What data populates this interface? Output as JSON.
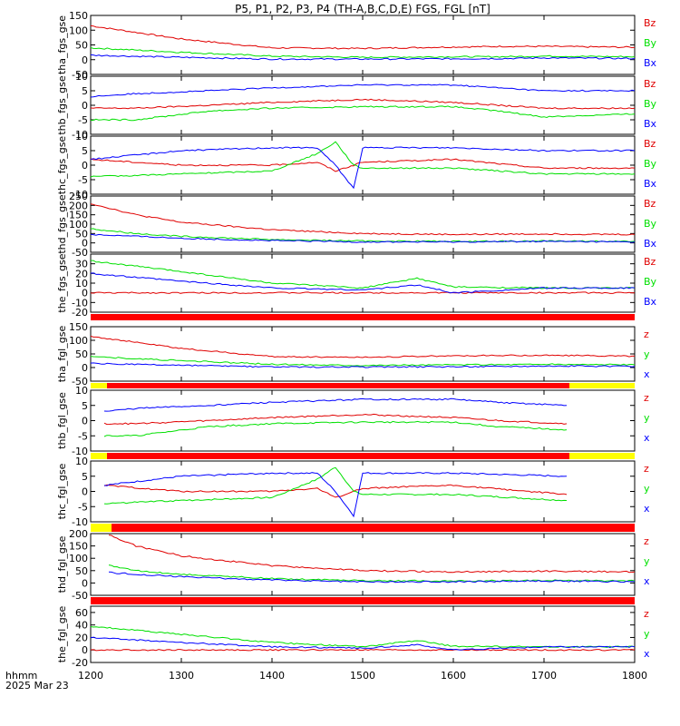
{
  "title": "P5, P1, P2, P3, P4 (TH-A,B,C,D,E) FGS, FGL [nT]",
  "colors": {
    "x": "#0000ff",
    "y": "#00e000",
    "z": "#e00000",
    "bar_red": "#ff0000",
    "bar_yellow": "#ffff00",
    "axis": "#000000"
  },
  "x_axis": {
    "range": [
      1200,
      1800
    ],
    "ticks": [
      1200,
      1300,
      1400,
      1500,
      1600,
      1700,
      1800
    ],
    "unit_label": "hhmm",
    "date_label": "2025 Mar 23"
  },
  "chart_data": [
    {
      "type": "line",
      "panel": "tha_fgs_gse",
      "ylabel": "tha_fgs_gse",
      "ylim": [
        -50,
        150
      ],
      "yticks": [
        150,
        100,
        50,
        0,
        -50
      ],
      "series": [
        {
          "name": "Bz",
          "color": "#e00000",
          "x": [
            1200,
            1300,
            1400,
            1500,
            1600,
            1660,
            1700,
            1800
          ],
          "y": [
            115,
            70,
            40,
            38,
            43,
            45,
            45,
            42
          ]
        },
        {
          "name": "By",
          "color": "#00e000",
          "x": [
            1200,
            1300,
            1400,
            1500,
            1600,
            1660,
            1700,
            1800
          ],
          "y": [
            40,
            25,
            12,
            8,
            10,
            10,
            12,
            10
          ]
        },
        {
          "name": "Bx",
          "color": "#0000ff",
          "x": [
            1200,
            1300,
            1400,
            1500,
            1600,
            1660,
            1700,
            1800
          ],
          "y": [
            15,
            8,
            2,
            2,
            3,
            4,
            6,
            4
          ]
        }
      ]
    },
    {
      "type": "line",
      "panel": "thb_fgs_gse",
      "ylabel": "thb_fgs_gse",
      "ylim": [
        -10,
        10
      ],
      "yticks": [
        10,
        5,
        0,
        -5,
        -10
      ],
      "series": [
        {
          "name": "Bz",
          "color": "#e00000",
          "x": [
            1200,
            1250,
            1330,
            1400,
            1500,
            1600,
            1650,
            1700,
            1800
          ],
          "y": [
            -1,
            -1,
            0,
            1,
            2,
            1,
            0,
            -1,
            -1
          ]
        },
        {
          "name": "By",
          "color": "#00e000",
          "x": [
            1200,
            1250,
            1330,
            1400,
            1500,
            1600,
            1650,
            1700,
            1800
          ],
          "y": [
            -5,
            -5,
            -2,
            -1,
            -0.5,
            -0.5,
            -2,
            -4,
            -3
          ]
        },
        {
          "name": "Bx",
          "color": "#0000ff",
          "x": [
            1200,
            1250,
            1330,
            1400,
            1500,
            1600,
            1650,
            1700,
            1800
          ],
          "y": [
            3,
            4,
            5,
            6,
            7,
            7,
            6,
            5,
            5
          ]
        }
      ]
    },
    {
      "type": "line",
      "panel": "thc_fgs_gse",
      "ylabel": "thc_fgs_gse",
      "ylim": [
        -10,
        10
      ],
      "yticks": [
        10,
        5,
        0,
        -5,
        -10
      ],
      "series": [
        {
          "name": "Bz",
          "color": "#e00000",
          "x": [
            1200,
            1300,
            1400,
            1450,
            1470,
            1490,
            1500,
            1600,
            1700,
            1800
          ],
          "y": [
            2,
            0,
            0,
            1,
            -2,
            0,
            1,
            2,
            -1,
            -1
          ]
        },
        {
          "name": "By",
          "color": "#00e000",
          "x": [
            1200,
            1300,
            1400,
            1450,
            1470,
            1490,
            1500,
            1600,
            1700,
            1800
          ],
          "y": [
            -4,
            -3,
            -2,
            4,
            8,
            0,
            -1,
            -1,
            -3,
            -3
          ]
        },
        {
          "name": "Bx",
          "color": "#0000ff",
          "x": [
            1200,
            1300,
            1400,
            1450,
            1470,
            1490,
            1500,
            1600,
            1700,
            1800
          ],
          "y": [
            2,
            5,
            6,
            6,
            0,
            -8,
            6,
            6,
            5,
            5
          ]
        }
      ]
    },
    {
      "type": "line",
      "panel": "thd_fgs_gse",
      "ylabel": "thd_fgs_gse",
      "ylim": [
        -50,
        250
      ],
      "yticks": [
        250,
        200,
        150,
        100,
        50,
        0,
        -50
      ],
      "series": [
        {
          "name": "Bz",
          "color": "#e00000",
          "x": [
            1200,
            1250,
            1300,
            1400,
            1500,
            1600,
            1700,
            1800
          ],
          "y": [
            210,
            150,
            110,
            70,
            50,
            45,
            48,
            45
          ]
        },
        {
          "name": "By",
          "color": "#00e000",
          "x": [
            1200,
            1250,
            1300,
            1400,
            1500,
            1600,
            1700,
            1800
          ],
          "y": [
            75,
            50,
            35,
            18,
            10,
            8,
            10,
            8
          ]
        },
        {
          "name": "Bx",
          "color": "#0000ff",
          "x": [
            1200,
            1250,
            1300,
            1400,
            1500,
            1600,
            1700,
            1800
          ],
          "y": [
            45,
            35,
            25,
            12,
            5,
            5,
            8,
            5
          ]
        }
      ]
    },
    {
      "type": "line",
      "panel": "the_fgs_gse",
      "ylabel": "the_fgs_gse",
      "ylim": [
        -20,
        40
      ],
      "yticks": [
        30,
        20,
        10,
        0,
        -10,
        -20
      ],
      "series": [
        {
          "name": "Bz",
          "color": "#e00000",
          "x": [
            1200,
            1800
          ],
          "y": [
            0,
            0
          ]
        },
        {
          "name": "By",
          "color": "#00e000",
          "x": [
            1200,
            1300,
            1400,
            1500,
            1560,
            1600,
            1700,
            1800
          ],
          "y": [
            33,
            22,
            10,
            5,
            15,
            6,
            5,
            5
          ]
        },
        {
          "name": "Bx",
          "color": "#0000ff",
          "x": [
            1200,
            1300,
            1400,
            1500,
            1560,
            1600,
            1700,
            1800
          ],
          "y": [
            20,
            12,
            5,
            3,
            8,
            0,
            5,
            5
          ]
        }
      ]
    },
    {
      "type": "line",
      "panel": "tha_fgl_gse",
      "ylabel": "tha_fgl_gse",
      "ylim": [
        -50,
        150
      ],
      "yticks": [
        150,
        100,
        50,
        0,
        -50
      ],
      "series": [
        {
          "name": "z",
          "color": "#e00000",
          "x": [
            1200,
            1300,
            1400,
            1500,
            1600,
            1700,
            1800
          ],
          "y": [
            115,
            70,
            40,
            38,
            43,
            45,
            42
          ]
        },
        {
          "name": "y",
          "color": "#00e000",
          "x": [
            1200,
            1300,
            1400,
            1500,
            1600,
            1700,
            1800
          ],
          "y": [
            40,
            25,
            12,
            8,
            10,
            12,
            10
          ]
        },
        {
          "name": "x",
          "color": "#0000ff",
          "x": [
            1200,
            1300,
            1400,
            1500,
            1600,
            1700,
            1800
          ],
          "y": [
            15,
            8,
            2,
            2,
            3,
            6,
            4
          ]
        }
      ]
    },
    {
      "type": "line",
      "panel": "thb_fgl_gse",
      "ylabel": "thb_fgl_gse",
      "ylim": [
        -10,
        10
      ],
      "yticks": [
        10,
        5,
        0,
        -5,
        -10
      ],
      "series": [
        {
          "name": "z",
          "color": "#e00000",
          "x": [
            1215,
            1250,
            1330,
            1400,
            1500,
            1600,
            1650,
            1725
          ],
          "y": [
            -1,
            -1,
            0,
            1,
            2,
            1,
            0,
            -1
          ]
        },
        {
          "name": "y",
          "color": "#00e000",
          "x": [
            1215,
            1250,
            1330,
            1400,
            1500,
            1600,
            1650,
            1725
          ],
          "y": [
            -5,
            -5,
            -2,
            -1,
            -0.5,
            -0.5,
            -2,
            -3
          ]
        },
        {
          "name": "x",
          "color": "#0000ff",
          "x": [
            1215,
            1250,
            1330,
            1400,
            1500,
            1600,
            1650,
            1725
          ],
          "y": [
            3,
            4,
            5,
            6,
            7,
            7,
            6,
            5
          ]
        }
      ]
    },
    {
      "type": "line",
      "panel": "thc_fgl_gse",
      "ylabel": "thc_fgl_gse",
      "ylim": [
        -10,
        10
      ],
      "yticks": [
        10,
        5,
        0,
        -5,
        -10
      ],
      "series": [
        {
          "name": "z",
          "color": "#e00000",
          "x": [
            1215,
            1300,
            1400,
            1450,
            1470,
            1490,
            1500,
            1600,
            1725
          ],
          "y": [
            2,
            0,
            0,
            1,
            -2,
            0,
            1,
            2,
            -1
          ]
        },
        {
          "name": "y",
          "color": "#00e000",
          "x": [
            1215,
            1300,
            1400,
            1450,
            1470,
            1490,
            1500,
            1600,
            1725
          ],
          "y": [
            -4,
            -3,
            -2,
            4,
            8,
            0,
            -1,
            -1,
            -3
          ]
        },
        {
          "name": "x",
          "color": "#0000ff",
          "x": [
            1215,
            1300,
            1400,
            1450,
            1470,
            1490,
            1500,
            1600,
            1725
          ],
          "y": [
            2,
            5,
            6,
            6,
            0,
            -8,
            6,
            6,
            5
          ]
        }
      ]
    },
    {
      "type": "line",
      "panel": "thd_fgl_gse",
      "ylabel": "thd_fgl_gse",
      "ylim": [
        -50,
        200
      ],
      "yticks": [
        200,
        150,
        100,
        50,
        0,
        -50
      ],
      "series": [
        {
          "name": "z",
          "color": "#e00000",
          "x": [
            1220,
            1250,
            1300,
            1400,
            1500,
            1600,
            1700,
            1800
          ],
          "y": [
            195,
            150,
            110,
            70,
            50,
            45,
            48,
            45
          ]
        },
        {
          "name": "y",
          "color": "#00e000",
          "x": [
            1220,
            1250,
            1300,
            1400,
            1500,
            1600,
            1700,
            1800
          ],
          "y": [
            70,
            50,
            35,
            18,
            10,
            8,
            10,
            8
          ]
        },
        {
          "name": "x",
          "color": "#0000ff",
          "x": [
            1220,
            1250,
            1300,
            1400,
            1500,
            1600,
            1700,
            1800
          ],
          "y": [
            42,
            35,
            25,
            12,
            5,
            5,
            8,
            5
          ]
        }
      ]
    },
    {
      "type": "line",
      "panel": "the_fgl_gse",
      "ylabel": "the_fgl_gse",
      "ylim": [
        -20,
        70
      ],
      "yticks": [
        60,
        40,
        20,
        0,
        -20
      ],
      "series": [
        {
          "name": "z",
          "color": "#e00000",
          "x": [
            1200,
            1800
          ],
          "y": [
            0,
            0
          ]
        },
        {
          "name": "y",
          "color": "#00e000",
          "x": [
            1200,
            1300,
            1400,
            1500,
            1560,
            1600,
            1700,
            1800
          ],
          "y": [
            38,
            25,
            12,
            5,
            15,
            6,
            5,
            5
          ]
        },
        {
          "name": "x",
          "color": "#0000ff",
          "x": [
            1200,
            1300,
            1400,
            1500,
            1560,
            1600,
            1700,
            1800
          ],
          "y": [
            20,
            12,
            5,
            3,
            8,
            0,
            5,
            5
          ]
        }
      ]
    }
  ]
}
